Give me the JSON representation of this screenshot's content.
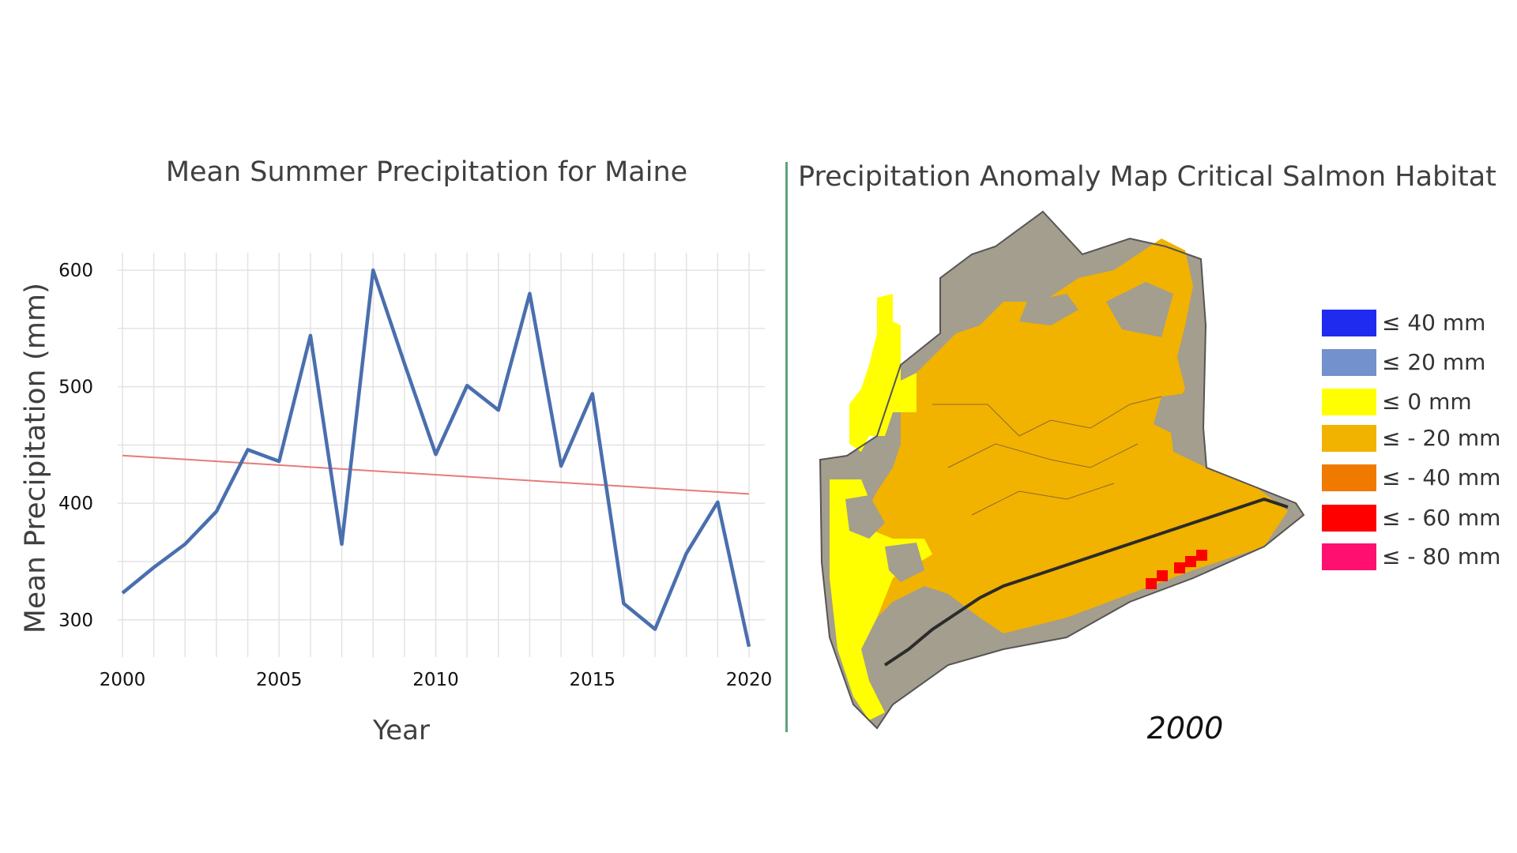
{
  "chart_data": {
    "type": "line",
    "title": "Mean Summer Precipitation for Maine",
    "xlabel": "Year",
    "ylabel": "Mean  Precipitation (mm)",
    "x": [
      2000,
      2001,
      2002,
      2003,
      2004,
      2005,
      2006,
      2007,
      2008,
      2009,
      2010,
      2011,
      2012,
      2013,
      2014,
      2015,
      2016,
      2017,
      2018,
      2019,
      2020
    ],
    "series": [
      {
        "values": [
          323,
          345,
          365,
          393,
          446,
          436,
          544,
          365,
          600,
          520,
          442,
          501,
          480,
          580,
          432,
          494,
          314,
          292,
          357,
          401,
          277
        ],
        "color": "#4a6fae"
      }
    ],
    "trendline": {
      "x": [
        2000,
        2020
      ],
      "values": [
        441,
        408
      ],
      "color": "#e87a7a"
    },
    "xticks": [
      2000,
      2005,
      2010,
      2015,
      2020
    ],
    "yticks": [
      300,
      400,
      500,
      600
    ],
    "xlim": [
      2000,
      2020
    ],
    "ylim": [
      268,
      615
    ],
    "grid": true
  },
  "map": {
    "title": "Precipitation Anomaly Map Critical Salmon Habitat",
    "year": "2000",
    "legend": [
      {
        "label": "≤   40 mm",
        "color": "#1f2cf0"
      },
      {
        "label": "≤   20 mm",
        "color": "#7391cc"
      },
      {
        "label": "≤    0 mm",
        "color": "#ffff00"
      },
      {
        "label": "≤ - 20 mm",
        "color": "#f2b200"
      },
      {
        "label": "≤ - 40 mm",
        "color": "#f07a00"
      },
      {
        "label": "≤ - 60 mm",
        "color": "#ff0000"
      },
      {
        "label": "≤ - 80 mm",
        "color": "#ff0f6f"
      }
    ],
    "colors": {
      "land": "#a39e8d",
      "divider": "#5fa27a"
    }
  }
}
